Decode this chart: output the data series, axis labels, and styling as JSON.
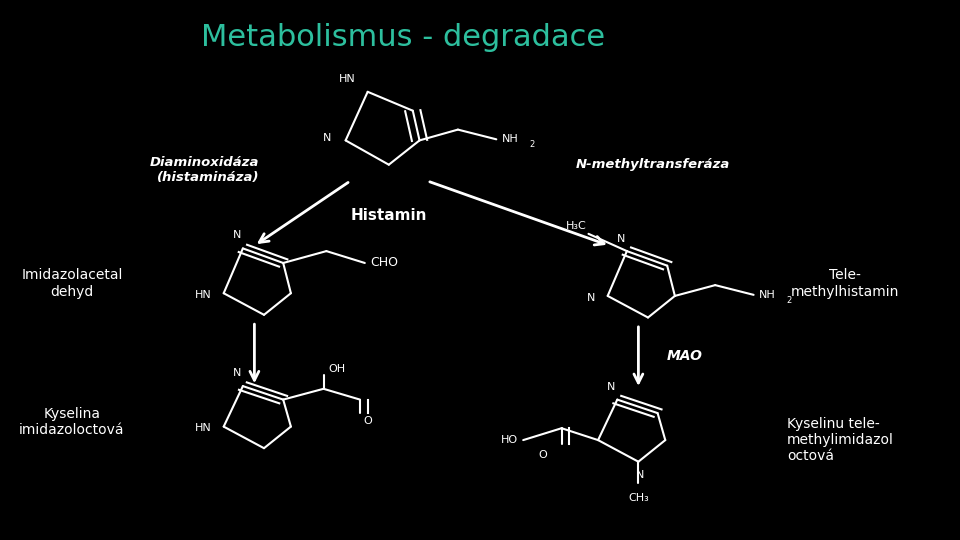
{
  "bg_color": "#000000",
  "title": "Metabolismus - degradace",
  "title_color": "#2dbf9e",
  "title_fontsize": 24,
  "text_color": "#ffffff",
  "structure_color": "#ffffff",
  "arrow_color": "#ffffff",
  "labels": {
    "diaminoxidaza": "Diaminoxidáza\n(histamináza)",
    "histamin": "Histamin",
    "n_methyl": "N-methyltransferáza",
    "imidazolacetal": "Imidazolacetal\ndehyd",
    "mao": "MAO",
    "telemethyl": "Tele-\nmethylhistamin",
    "kyselina_imid": "Kyselina\nimidazoloctová",
    "kyselinu_tele": "Kyselinu tele-\nmethylimidazol\noctová"
  }
}
